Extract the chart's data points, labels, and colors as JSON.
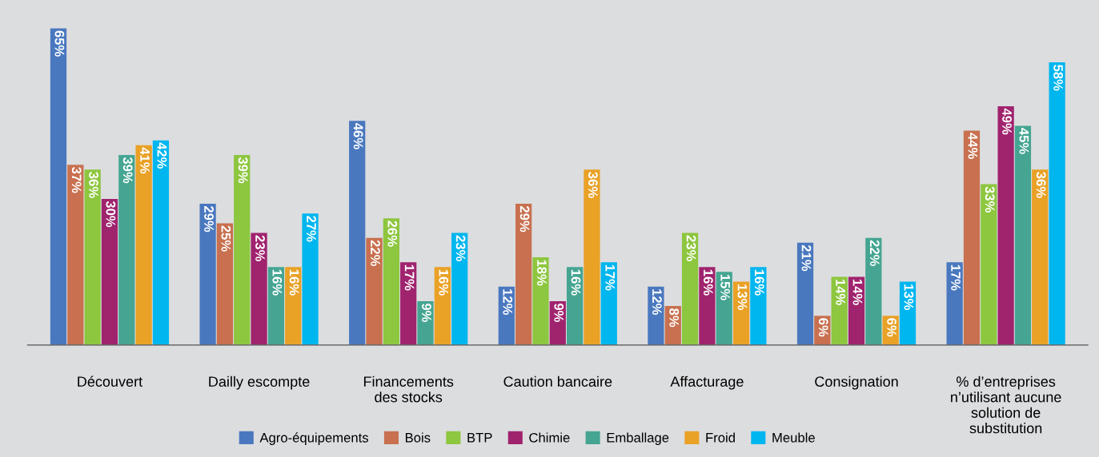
{
  "chart_data": {
    "type": "bar",
    "categories": [
      "Découvert",
      "Dailly escompte",
      "Financements\ndes stocks",
      "Caution bancaire",
      "Affacturage",
      "Consignation",
      "% d’entreprises\nn’utilisant aucune\nsolution de\nsubstitution"
    ],
    "series": [
      {
        "name": "Agro-équipements",
        "color": "#4a78bf",
        "values": [
          65,
          29,
          46,
          12,
          12,
          21,
          17
        ],
        "value_labels": [
          "65%",
          "29%",
          "46%",
          "12%",
          "12%",
          "21%",
          "17%"
        ]
      },
      {
        "name": "Bois",
        "color": "#c8704f",
        "values": [
          37,
          25,
          22,
          29,
          8,
          6,
          44
        ],
        "value_labels": [
          "37%",
          "25%",
          "22%",
          "29%",
          "8%",
          "6%",
          "44%"
        ]
      },
      {
        "name": "BTP",
        "color": "#8dc63f",
        "values": [
          36,
          39,
          26,
          18,
          23,
          14,
          33
        ],
        "value_labels": [
          "36%",
          "39%",
          "26%",
          "18%",
          "23%",
          "14%",
          "33%"
        ]
      },
      {
        "name": "Chimie",
        "color": "#a0236e",
        "values": [
          30,
          23,
          17,
          9,
          16,
          14,
          49
        ],
        "value_labels": [
          "30%",
          "23%",
          "17%",
          "9%",
          "16%",
          "14%",
          "49%"
        ]
      },
      {
        "name": "Emballage",
        "color": "#45a592",
        "values": [
          39,
          16,
          9,
          16,
          15,
          22,
          45
        ],
        "value_labels": [
          "39%",
          "16%",
          "9%",
          "16%",
          "15%",
          "22%",
          "45%"
        ]
      },
      {
        "name": "Froid",
        "color": "#e9a126",
        "values": [
          41,
          16,
          16,
          36,
          13,
          6,
          36
        ],
        "value_labels": [
          "41%",
          "16%",
          "16%",
          "36%",
          "13%",
          "6%",
          "36%"
        ]
      },
      {
        "name": "Meuble",
        "color": "#00b6ef",
        "values": [
          42,
          27,
          23,
          17,
          16,
          13,
          58
        ],
        "value_labels": [
          "42%",
          "27%",
          "23%",
          "17%",
          "16%",
          "13%",
          "58%"
        ]
      }
    ],
    "legend": "bottom"
  }
}
